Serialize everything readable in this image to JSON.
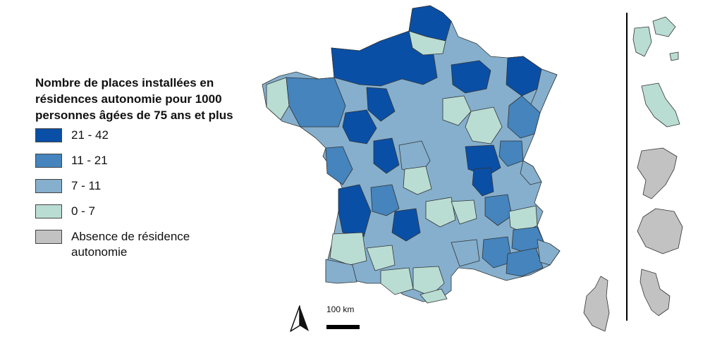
{
  "legend": {
    "title": "Nombre de places installées en résidences autonomie pour 1000 personnes âgées de 75 ans et plus",
    "items": [
      {
        "label": "21 - 42",
        "color": "#0a4fa6"
      },
      {
        "label": "11 - 21",
        "color": "#4584bd"
      },
      {
        "label": "7 - 11",
        "color": "#85afcd"
      },
      {
        "label": "0 - 7",
        "color": "#b9ddd3"
      },
      {
        "label": "Absence de résidence autonomie",
        "color": "#c2c2c2"
      }
    ]
  },
  "scale": {
    "label": "100 km"
  },
  "icons": {
    "north_arrow": "north-arrow-icon"
  }
}
